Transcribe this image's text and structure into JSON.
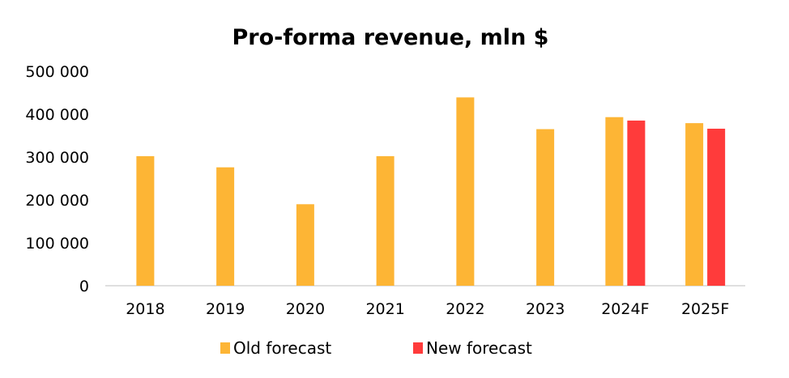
{
  "chart_data": {
    "type": "bar",
    "title": "Pro-forma revenue, mln $",
    "xlabel": "",
    "ylabel": "",
    "categories": [
      "2018",
      "2019",
      "2020",
      "2021",
      "2022",
      "2023",
      "2024F",
      "2025F"
    ],
    "series": [
      {
        "name": "Old forecast",
        "color": "#FDB535",
        "values": [
          302000,
          276000,
          190000,
          302000,
          439000,
          365000,
          393000,
          379000
        ]
      },
      {
        "name": "New forecast",
        "color": "#FF3B3B",
        "values": [
          null,
          null,
          null,
          null,
          null,
          null,
          385000,
          366000
        ]
      }
    ],
    "ylim": [
      0,
      500000
    ],
    "yticks": [
      0,
      100000,
      200000,
      300000,
      400000,
      500000
    ],
    "ytick_labels": [
      "0",
      "100 000",
      "200 000",
      "300 000",
      "400 000",
      "500 000"
    ],
    "grid": false,
    "legend_position": "bottom"
  }
}
